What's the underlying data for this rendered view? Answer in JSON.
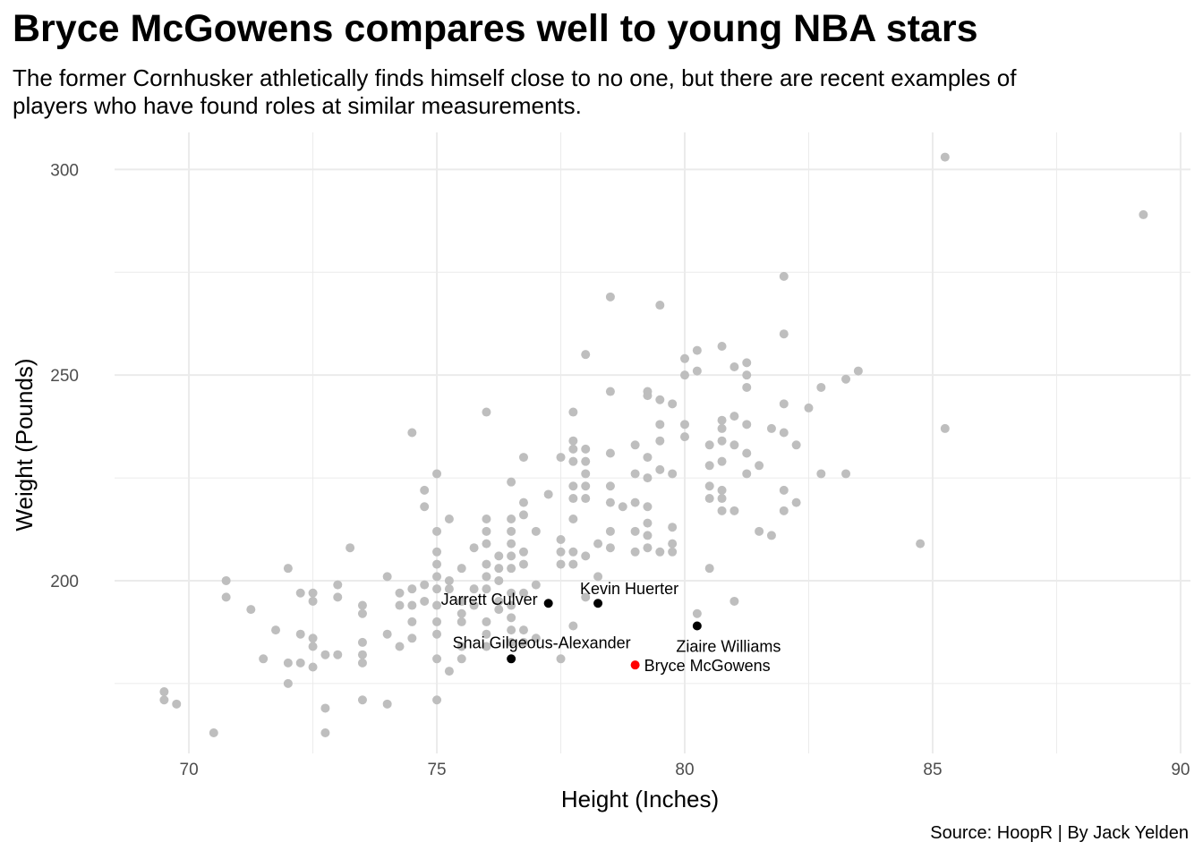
{
  "chart_data": {
    "type": "scatter",
    "title": "Bryce McGowens compares well to young NBA stars",
    "subtitle": "The former Cornhusker athletically finds himself close to no one, but there are recent examples of players who have found roles at similar measurements.",
    "caption": "Source: HoopR | By Jack Yelden",
    "xlabel": "Height (Inches)",
    "ylabel": "Weight (Pounds)",
    "xlim": [
      68.5,
      90.2
    ],
    "ylim": [
      158,
      309
    ],
    "xticks": [
      70,
      75,
      80,
      85,
      90
    ],
    "yticks": [
      200,
      250,
      300
    ],
    "grid": true,
    "colors": {
      "background_points": "#bebebe",
      "highlight": "#000000",
      "featured": "#ff0000",
      "grid": "#ebebeb"
    },
    "points": [
      [
        69.5,
        173
      ],
      [
        69.5,
        171
      ],
      [
        69.75,
        170
      ],
      [
        70.5,
        163
      ],
      [
        70.75,
        200
      ],
      [
        70.75,
        196
      ],
      [
        71.25,
        193
      ],
      [
        71.5,
        181
      ],
      [
        71.75,
        188
      ],
      [
        72,
        203
      ],
      [
        72,
        180
      ],
      [
        72,
        175
      ],
      [
        72.25,
        197
      ],
      [
        72.25,
        187
      ],
      [
        72.25,
        180
      ],
      [
        72.5,
        197
      ],
      [
        72.5,
        195
      ],
      [
        72.5,
        186
      ],
      [
        72.5,
        184
      ],
      [
        72.5,
        179
      ],
      [
        72.75,
        182
      ],
      [
        72.75,
        169
      ],
      [
        72.75,
        163
      ],
      [
        73,
        199
      ],
      [
        73,
        196
      ],
      [
        73,
        182
      ],
      [
        73.25,
        208
      ],
      [
        73.5,
        194
      ],
      [
        73.5,
        192
      ],
      [
        73.5,
        185
      ],
      [
        73.5,
        182
      ],
      [
        73.5,
        180
      ],
      [
        73.5,
        171
      ],
      [
        74,
        201
      ],
      [
        74,
        187
      ],
      [
        74,
        170
      ],
      [
        74.25,
        184
      ],
      [
        74.25,
        197
      ],
      [
        74.25,
        194
      ],
      [
        74.5,
        236
      ],
      [
        74.5,
        198
      ],
      [
        74.5,
        194
      ],
      [
        74.5,
        190
      ],
      [
        74.5,
        186
      ],
      [
        74.75,
        222
      ],
      [
        74.75,
        218
      ],
      [
        74.75,
        199
      ],
      [
        74.75,
        195
      ],
      [
        75,
        226
      ],
      [
        75,
        212
      ],
      [
        75,
        207
      ],
      [
        75,
        204
      ],
      [
        75,
        201
      ],
      [
        75,
        198
      ],
      [
        75,
        194
      ],
      [
        75,
        190
      ],
      [
        75,
        187
      ],
      [
        75,
        181
      ],
      [
        75,
        171
      ],
      [
        75.25,
        215
      ],
      [
        75.25,
        200
      ],
      [
        75.25,
        198
      ],
      [
        75.25,
        178
      ],
      [
        75.5,
        203
      ],
      [
        75.5,
        195
      ],
      [
        75.5,
        192
      ],
      [
        75.5,
        190
      ],
      [
        75.5,
        184
      ],
      [
        75.5,
        181
      ],
      [
        75.75,
        208
      ],
      [
        75.75,
        198
      ],
      [
        75.75,
        194
      ],
      [
        76,
        241
      ],
      [
        76,
        215
      ],
      [
        76,
        212
      ],
      [
        76,
        209
      ],
      [
        76,
        204
      ],
      [
        76,
        201
      ],
      [
        76,
        198
      ],
      [
        76,
        190
      ],
      [
        76,
        187
      ],
      [
        76,
        184
      ],
      [
        76.25,
        206
      ],
      [
        76.25,
        203
      ],
      [
        76.25,
        200
      ],
      [
        76.25,
        195
      ],
      [
        76.25,
        193
      ],
      [
        76.5,
        224
      ],
      [
        76.5,
        215
      ],
      [
        76.5,
        212
      ],
      [
        76.5,
        209
      ],
      [
        76.5,
        206
      ],
      [
        76.5,
        203
      ],
      [
        76.5,
        197
      ],
      [
        76.5,
        194
      ],
      [
        76.5,
        191
      ],
      [
        76.5,
        188
      ],
      [
        76.5,
        185
      ],
      [
        76.75,
        230
      ],
      [
        76.75,
        219
      ],
      [
        76.75,
        216
      ],
      [
        76.75,
        207
      ],
      [
        76.75,
        204
      ],
      [
        76.75,
        197
      ],
      [
        76.75,
        188
      ],
      [
        76.75,
        185
      ],
      [
        77,
        212
      ],
      [
        77,
        199
      ],
      [
        77,
        186
      ],
      [
        77.25,
        221
      ],
      [
        77.5,
        230
      ],
      [
        77.5,
        210
      ],
      [
        77.5,
        207
      ],
      [
        77.5,
        204
      ],
      [
        77.5,
        181
      ],
      [
        77.75,
        241
      ],
      [
        77.75,
        234
      ],
      [
        77.75,
        232
      ],
      [
        77.75,
        229
      ],
      [
        77.75,
        223
      ],
      [
        77.75,
        220
      ],
      [
        77.75,
        215
      ],
      [
        77.75,
        207
      ],
      [
        77.75,
        204
      ],
      [
        77.75,
        189
      ],
      [
        78,
        255
      ],
      [
        78,
        232
      ],
      [
        78,
        229
      ],
      [
        78,
        226
      ],
      [
        78,
        223
      ],
      [
        78,
        220
      ],
      [
        78,
        206
      ],
      [
        78,
        196
      ],
      [
        78.25,
        209
      ],
      [
        78.25,
        201
      ],
      [
        78.5,
        269
      ],
      [
        78.5,
        246
      ],
      [
        78.5,
        231
      ],
      [
        78.5,
        223
      ],
      [
        78.5,
        219
      ],
      [
        78.5,
        212
      ],
      [
        78.5,
        208
      ],
      [
        78.75,
        218
      ],
      [
        79,
        233
      ],
      [
        79,
        226
      ],
      [
        79,
        219
      ],
      [
        79,
        212
      ],
      [
        79,
        207
      ],
      [
        79.25,
        246
      ],
      [
        79.25,
        245
      ],
      [
        79.25,
        230
      ],
      [
        79.25,
        225
      ],
      [
        79.25,
        218
      ],
      [
        79.25,
        214
      ],
      [
        79.25,
        211
      ],
      [
        79.25,
        208
      ],
      [
        79.5,
        267
      ],
      [
        79.5,
        244
      ],
      [
        79.5,
        238
      ],
      [
        79.5,
        234
      ],
      [
        79.5,
        227
      ],
      [
        79.5,
        207
      ],
      [
        79.75,
        243
      ],
      [
        79.75,
        226
      ],
      [
        79.75,
        213
      ],
      [
        79.75,
        209
      ],
      [
        79.75,
        207
      ],
      [
        80,
        254
      ],
      [
        80,
        250
      ],
      [
        80,
        238
      ],
      [
        80,
        235
      ],
      [
        80.25,
        256
      ],
      [
        80.25,
        251
      ],
      [
        80.25,
        192
      ],
      [
        80.5,
        233
      ],
      [
        80.5,
        228
      ],
      [
        80.5,
        223
      ],
      [
        80.5,
        220
      ],
      [
        80.5,
        203
      ],
      [
        80.75,
        257
      ],
      [
        80.75,
        239
      ],
      [
        80.75,
        237
      ],
      [
        80.75,
        234
      ],
      [
        80.75,
        229
      ],
      [
        80.75,
        222
      ],
      [
        80.75,
        220
      ],
      [
        80.75,
        217
      ],
      [
        81,
        252
      ],
      [
        81,
        240
      ],
      [
        81,
        233
      ],
      [
        81,
        217
      ],
      [
        81,
        195
      ],
      [
        81.25,
        253
      ],
      [
        81.25,
        250
      ],
      [
        81.25,
        247
      ],
      [
        81.25,
        238
      ],
      [
        81.25,
        231
      ],
      [
        81.25,
        226
      ],
      [
        81.5,
        228
      ],
      [
        81.5,
        212
      ],
      [
        81.75,
        237
      ],
      [
        81.75,
        211
      ],
      [
        82,
        274
      ],
      [
        82,
        260
      ],
      [
        82,
        243
      ],
      [
        82,
        236
      ],
      [
        82,
        222
      ],
      [
        82,
        217
      ],
      [
        82.25,
        233
      ],
      [
        82.25,
        219
      ],
      [
        82.5,
        242
      ],
      [
        82.75,
        247
      ],
      [
        82.75,
        226
      ],
      [
        83.25,
        249
      ],
      [
        83.25,
        226
      ],
      [
        83.5,
        251
      ],
      [
        84.75,
        209
      ],
      [
        85.25,
        303
      ],
      [
        85.25,
        237
      ],
      [
        89.25,
        289
      ]
    ],
    "highlights": [
      {
        "name": "Jarrett Culver",
        "x": 77.25,
        "y": 194.5
      },
      {
        "name": "Kevin Huerter",
        "x": 78.25,
        "y": 194.5
      },
      {
        "name": "Shai Gilgeous-Alexander",
        "x": 76.5,
        "y": 181
      },
      {
        "name": "Ziaire Williams",
        "x": 80.25,
        "y": 189
      }
    ],
    "featured": {
      "name": "Bryce McGowens",
      "x": 79,
      "y": 179.5
    }
  }
}
